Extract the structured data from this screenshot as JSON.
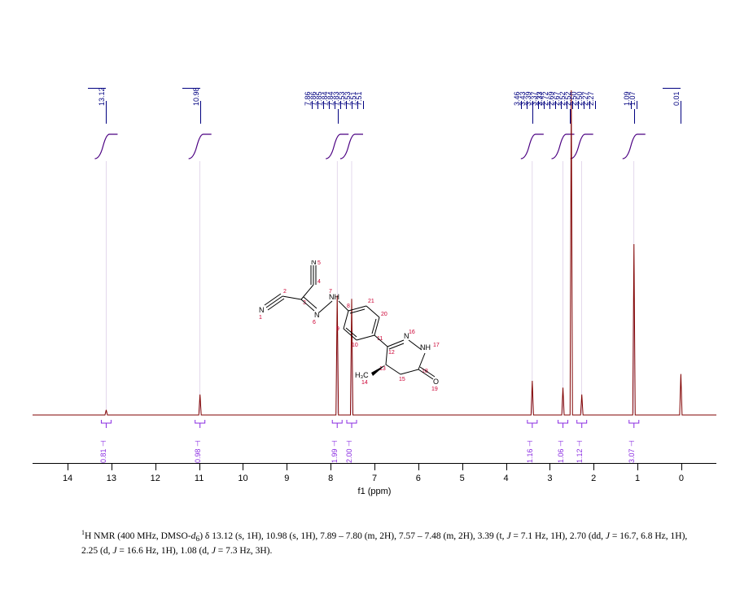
{
  "chart": {
    "type": "nmr-spectrum",
    "xaxis": {
      "label": "f1 (ppm)",
      "min": -0.8,
      "max": 14.8,
      "ticks": [
        14,
        13,
        12,
        11,
        10,
        9,
        8,
        7,
        6,
        5,
        4,
        3,
        2,
        1,
        0
      ],
      "label_fontsize": 11,
      "tick_fontsize": 11
    },
    "peak_labels": {
      "color": "#000080",
      "fontsize": 9,
      "groups": [
        {
          "ppm": 13.12,
          "labels": [
            "13.12"
          ]
        },
        {
          "ppm": 10.98,
          "labels": [
            "10.98"
          ]
        },
        {
          "ppm": 7.84,
          "labels": [
            "7.86",
            "7.86",
            "7.85",
            "7.84",
            "7.84",
            "7.83",
            "7.53",
            "7.53",
            "7.51",
            "7.51"
          ]
        },
        {
          "ppm": 3.4,
          "labels": [
            "3.46",
            "3.43",
            "3.39",
            "3.37",
            "3.37"
          ]
        },
        {
          "ppm": 2.55,
          "labels": [
            "2.73",
            "2.72",
            "2.69",
            "2.67",
            "2.52",
            "2.52",
            "2.50",
            "2.50",
            "2.27",
            "2.27"
          ]
        },
        {
          "ppm": 1.08,
          "labels": [
            "1.09",
            "1.07"
          ]
        },
        {
          "ppm": 0.01,
          "labels": [
            "0.01"
          ]
        }
      ]
    },
    "peaks": [
      {
        "ppm": 13.12,
        "height": 0.015,
        "color": "#800000"
      },
      {
        "ppm": 10.98,
        "height": 0.06,
        "color": "#800000"
      },
      {
        "ppm": 7.85,
        "height": 0.35,
        "color": "#800000"
      },
      {
        "ppm": 7.52,
        "height": 0.34,
        "color": "#800000"
      },
      {
        "ppm": 3.4,
        "height": 0.1,
        "color": "#1e2a8a"
      },
      {
        "ppm": 2.7,
        "height": 0.08,
        "color": "#1e2a8a"
      },
      {
        "ppm": 2.51,
        "height": 0.95,
        "color": "#800000"
      },
      {
        "ppm": 2.27,
        "height": 0.06,
        "color": "#800000"
      },
      {
        "ppm": 1.08,
        "height": 0.5,
        "color": "#800000"
      },
      {
        "ppm": 0.01,
        "height": 0.12,
        "color": "#800000"
      }
    ],
    "integrals": {
      "color_curve": "#4b0082",
      "color_text": "#8a2be2",
      "fontsize": 9,
      "marks": [
        {
          "ppm": 13.12,
          "label": "0.81"
        },
        {
          "ppm": 10.98,
          "label": "0.98"
        },
        {
          "ppm": 7.85,
          "label": "1.99"
        },
        {
          "ppm": 7.52,
          "label": "2.00"
        },
        {
          "ppm": 3.4,
          "label": "1.16"
        },
        {
          "ppm": 2.7,
          "label": "1.06"
        },
        {
          "ppm": 2.27,
          "label": "1.12"
        },
        {
          "ppm": 1.08,
          "label": "3.07"
        }
      ]
    },
    "spectrum_color": "#800000",
    "baseline_color": "#800000",
    "background": "#ffffff"
  },
  "molecule": {
    "atoms_numbered": [
      "1",
      "2",
      "3",
      "4",
      "5",
      "6",
      "7",
      "8",
      "9",
      "10",
      "11",
      "12",
      "13",
      "14",
      "15",
      "16",
      "17",
      "18",
      "19",
      "20",
      "21"
    ],
    "ch3_label": "H₃C"
  },
  "caption": {
    "prefix_super": "1",
    "prefix": "H NMR (400 MHz, DMSO-",
    "solvent_italic": "d",
    "solvent_sub": "6",
    "body": ") δ 13.12 (s, 1H), 10.98 (s, 1H), 7.89 – 7.80 (m, 2H), 7.57 – 7.48 (m, 2H), 3.39 (t, ",
    "j1": "J",
    "body2": " = 7.1 Hz, 1H), 2.70 (dd, ",
    "j2": "J",
    "body3": " = 16.7, 6.8 Hz, 1H), 2.25 (d, ",
    "j3": "J",
    "body4": " = 16.6 Hz, 1H), 1.08 (d, ",
    "j4": "J",
    "body5": " = 7.3 Hz, 3H)."
  }
}
